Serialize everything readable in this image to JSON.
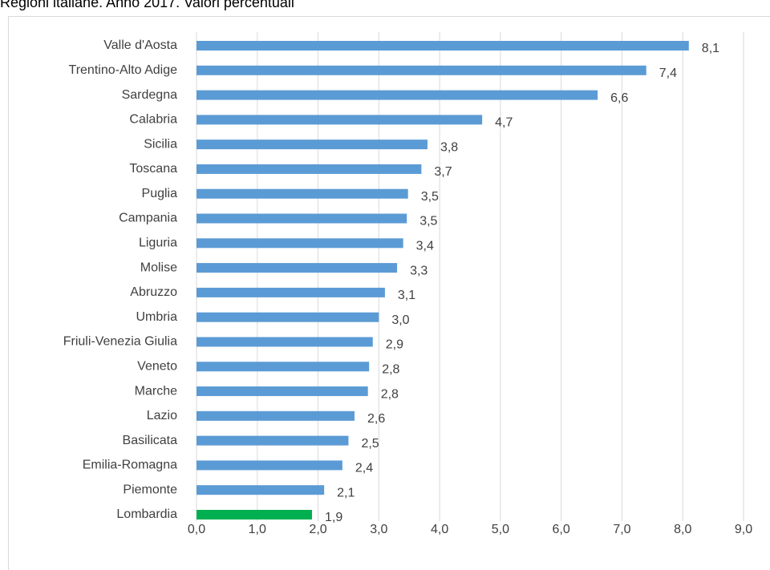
{
  "chart_data": {
    "type": "bar",
    "orientation": "horizontal",
    "title": "Regioni italiane. Anno 2017. Valori percentuali",
    "categories": [
      "Valle d'Aosta",
      "Trentino-Alto Adige",
      "Sardegna",
      "Calabria",
      "Sicilia",
      "Toscana",
      "Puglia",
      "Campania",
      "Liguria",
      "Molise",
      "Abruzzo",
      "Umbria",
      "Friuli-Venezia Giulia",
      "Veneto",
      "Marche",
      "Lazio",
      "Basilicata",
      "Emilia-Romagna",
      "Piemonte",
      "Lombardia"
    ],
    "values": [
      8.1,
      7.4,
      6.6,
      4.7,
      3.8,
      3.7,
      3.48,
      3.46,
      3.4,
      3.3,
      3.1,
      3.0,
      2.9,
      2.84,
      2.82,
      2.6,
      2.5,
      2.4,
      2.1,
      1.9
    ],
    "value_labels": [
      "8,1",
      "7,4",
      "6,6",
      "4,7",
      "3,8",
      "3,7",
      "3,5",
      "3,5",
      "3,4",
      "3,3",
      "3,1",
      "3,0",
      "2,9",
      "2,8",
      "2,8",
      "2,6",
      "2,5",
      "2,4",
      "2,1",
      "1,9"
    ],
    "colors": [
      "#5b9bd5",
      "#5b9bd5",
      "#5b9bd5",
      "#5b9bd5",
      "#5b9bd5",
      "#5b9bd5",
      "#5b9bd5",
      "#5b9bd5",
      "#5b9bd5",
      "#5b9bd5",
      "#5b9bd5",
      "#5b9bd5",
      "#5b9bd5",
      "#5b9bd5",
      "#5b9bd5",
      "#5b9bd5",
      "#5b9bd5",
      "#5b9bd5",
      "#5b9bd5",
      "#00b050"
    ],
    "xlim": [
      0,
      9
    ],
    "xticks": [
      {
        "value": 0,
        "label": "0,0"
      },
      {
        "value": 1,
        "label": "1,0"
      },
      {
        "value": 2,
        "label": "2,0"
      },
      {
        "value": 3,
        "label": "3,0"
      },
      {
        "value": 4,
        "label": "4,0"
      },
      {
        "value": 5,
        "label": "5,0"
      },
      {
        "value": 6,
        "label": "6,0"
      },
      {
        "value": 7,
        "label": "7,0"
      },
      {
        "value": 8,
        "label": "8,0"
      },
      {
        "value": 9,
        "label": "9,0"
      }
    ],
    "grid": true
  }
}
